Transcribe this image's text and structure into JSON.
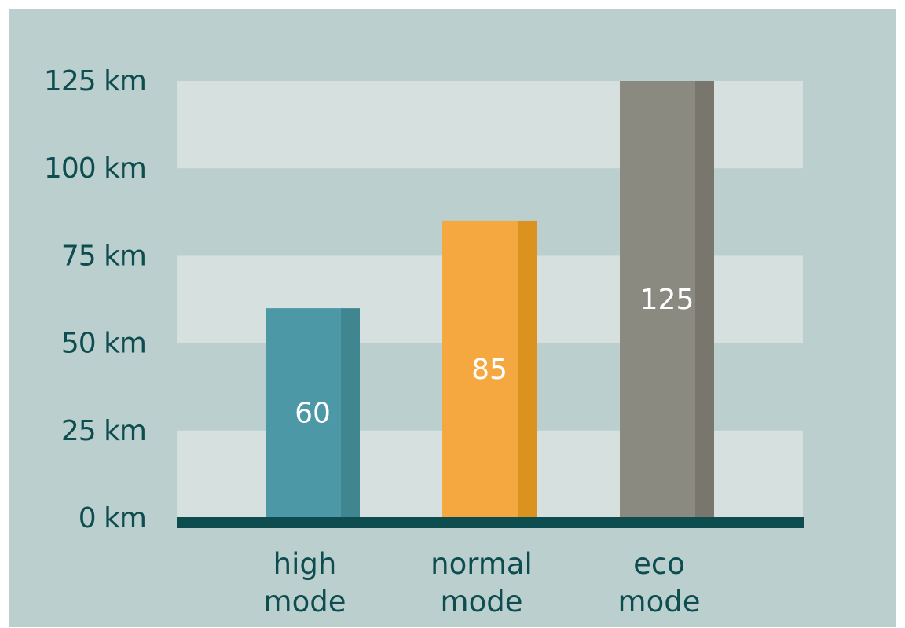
{
  "chart_data": {
    "type": "bar",
    "title": "",
    "xlabel": "",
    "ylabel": "",
    "ylim": [
      0,
      125
    ],
    "categories": [
      [
        "high",
        "mode"
      ],
      [
        "normal",
        "mode"
      ],
      [
        "eco",
        "mode"
      ]
    ],
    "values": [
      60,
      85,
      125
    ],
    "data_labels": [
      "60",
      "85",
      "125"
    ],
    "y_ticks": [
      0,
      25,
      50,
      75,
      100,
      125
    ],
    "y_tick_labels": [
      "0 km",
      "25 km",
      "50 km",
      "75 km",
      "100 km",
      "125 km"
    ],
    "grid": "alternating horizontal bands",
    "legend": "none"
  },
  "colors": {
    "background": "#bccfcf",
    "band": "#d6e0df",
    "axis": "#0d4d4f",
    "text": "#0d4d4f",
    "bar_face": [
      "#4d98a6",
      "#f5a83f",
      "#8b8a80"
    ],
    "bar_side": [
      "#3f8690",
      "#db921f",
      "#78766d"
    ]
  }
}
